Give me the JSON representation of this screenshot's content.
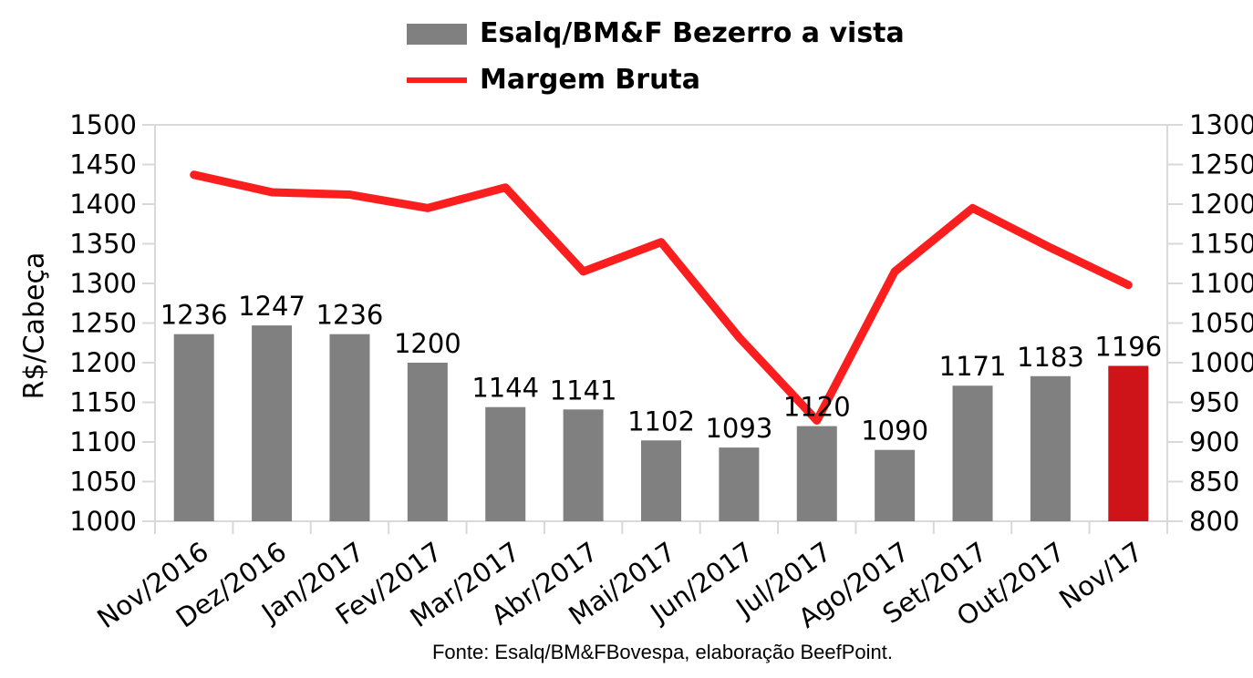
{
  "legend": {
    "bars_label": "Esalq/BM&F Bezerro a vista",
    "line_label": "Margem Bruta"
  },
  "footer": {
    "text": "Fonte: Esalq/BM&FBovespa, elaboração BeefPoint."
  },
  "colors": {
    "bar_gray": "#808080",
    "bar_highlight_red": "#CF1419",
    "line_red": "#FA1E1E",
    "axis_gray": "#D9D9D9",
    "text_black": "#000000"
  },
  "chart_data": {
    "type": "bar",
    "subtype": "bar+line combo, dual axis",
    "categories": [
      "Nov/2016",
      "Dez/2016",
      "Jan/2017",
      "Fev/2017",
      "Mar/2017",
      "Abr/2017",
      "Mai/2017",
      "Jun/2017",
      "Jul/2017",
      "Ago/2017",
      "Set/2017",
      "Out/2017",
      "Nov/17"
    ],
    "series": [
      {
        "name": "Esalq/BM&F Bezerro a vista",
        "type": "bar",
        "axis": "left",
        "values": [
          1236,
          1247,
          1236,
          1200,
          1144,
          1141,
          1102,
          1093,
          1120,
          1090,
          1171,
          1183,
          1196
        ],
        "data_labels": [
          "1236",
          "1247",
          "1236",
          "1200",
          "1144",
          "1141",
          "1102",
          "1093",
          "1120",
          "1090",
          "1171",
          "1183",
          "1196"
        ],
        "highlight_last": true
      },
      {
        "name": "Margem Bruta",
        "type": "line",
        "axis": "right",
        "values": [
          1237,
          1215,
          1212,
          1195,
          1221,
          1115,
          1152,
          1032,
          927,
          1115,
          1195,
          1145,
          1098
        ]
      }
    ],
    "left_axis": {
      "label": "R$/Cabeça",
      "min": 1000,
      "max": 1500,
      "step": 50,
      "ticks": [
        "1500",
        "1450",
        "1400",
        "1350",
        "1300",
        "1250",
        "1200",
        "1150",
        "1100",
        "1050",
        "1000"
      ]
    },
    "right_axis": {
      "label": "",
      "min": 800,
      "max": 1300,
      "step": 50,
      "ticks": [
        "1300",
        "1250",
        "1200",
        "1150",
        "1100",
        "1050",
        "1000",
        "950",
        "900",
        "850",
        "800"
      ]
    },
    "grid": "top gridline only, ticks on both y axes and below x axis",
    "legend_position": "top"
  }
}
